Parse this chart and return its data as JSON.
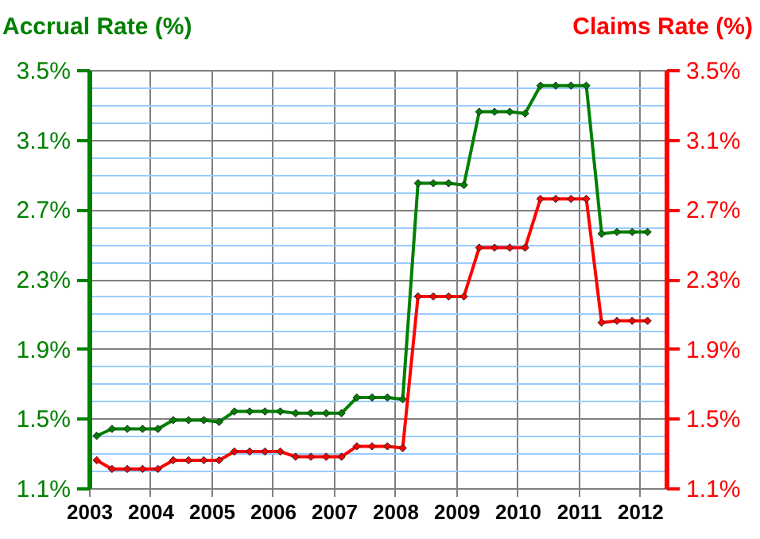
{
  "chart_data": {
    "type": "line",
    "ylabel": "Accrual Rate (%)",
    "y2label": "Claims Rate (%)",
    "x": [
      2003.125,
      2003.375,
      2003.625,
      2003.875,
      2004.125,
      2004.375,
      2004.625,
      2004.875,
      2005.125,
      2005.375,
      2005.625,
      2005.875,
      2006.125,
      2006.375,
      2006.625,
      2006.875,
      2007.125,
      2007.375,
      2007.625,
      2007.875,
      2008.125,
      2008.375,
      2008.625,
      2008.875,
      2009.125,
      2009.375,
      2009.625,
      2009.875,
      2010.125,
      2010.375,
      2010.625,
      2010.875,
      2011.125,
      2011.375,
      2011.625,
      2011.875,
      2012.125
    ],
    "series": [
      {
        "color": "#008000",
        "values": [
          1.4,
          1.44,
          1.44,
          1.44,
          1.44,
          1.49,
          1.49,
          1.49,
          1.48,
          1.54,
          1.54,
          1.54,
          1.54,
          1.53,
          1.53,
          1.53,
          1.53,
          1.62,
          1.62,
          1.62,
          1.61,
          2.85,
          2.85,
          2.85,
          2.84,
          3.26,
          3.26,
          3.26,
          3.25,
          3.41,
          3.41,
          3.41,
          3.41,
          2.56,
          2.57,
          2.57,
          2.57
        ]
      },
      {
        "color": "#ff0000",
        "axis": "y2",
        "values": [
          1.26,
          1.21,
          1.21,
          1.21,
          1.21,
          1.26,
          1.26,
          1.26,
          1.26,
          1.31,
          1.31,
          1.31,
          1.31,
          1.28,
          1.28,
          1.28,
          1.28,
          1.34,
          1.34,
          1.34,
          1.33,
          2.2,
          2.2,
          2.2,
          2.2,
          2.48,
          2.48,
          2.48,
          2.48,
          2.76,
          2.76,
          2.76,
          2.76,
          2.05,
          2.06,
          2.06,
          2.06
        ]
      }
    ],
    "xlim": [
      2003,
      2012.43
    ],
    "xticks": [
      2003,
      2004,
      2005,
      2006,
      2007,
      2008,
      2009,
      2010,
      2011,
      2012
    ],
    "ylim": [
      1.1,
      3.5
    ],
    "yticks": [
      {
        "value": 1.1,
        "label": "1.1%"
      },
      {
        "value": 1.2,
        "label": null
      },
      {
        "value": 1.3,
        "label": null
      },
      {
        "value": 1.4,
        "label": null
      },
      {
        "value": 1.5,
        "label": "1.5%"
      },
      {
        "value": 1.6,
        "label": null
      },
      {
        "value": 1.7,
        "label": null
      },
      {
        "value": 1.8,
        "label": null
      },
      {
        "value": 1.9,
        "label": "1.9%"
      },
      {
        "value": 2.0,
        "label": null
      },
      {
        "value": 2.1,
        "label": null
      },
      {
        "value": 2.2,
        "label": null
      },
      {
        "value": 2.3,
        "label": "2.3%"
      },
      {
        "value": 2.4,
        "label": null
      },
      {
        "value": 2.5,
        "label": null
      },
      {
        "value": 2.6,
        "label": null
      },
      {
        "value": 2.7,
        "label": "2.7%"
      },
      {
        "value": 2.8,
        "label": null
      },
      {
        "value": 2.9,
        "label": null
      },
      {
        "value": 3.0,
        "label": null
      },
      {
        "value": 3.1,
        "label": "3.1%"
      },
      {
        "value": 3.2,
        "label": null
      },
      {
        "value": 3.3,
        "label": null
      },
      {
        "value": 3.4,
        "label": null
      },
      {
        "value": 3.5,
        "label": "3.5%"
      }
    ],
    "y2lim": [
      1.1,
      3.5
    ],
    "y2ticks": [
      {
        "value": 1.1,
        "label": "1.1%"
      },
      {
        "value": 1.5,
        "label": "1.5%"
      },
      {
        "value": 1.9,
        "label": "1.9%"
      },
      {
        "value": 2.3,
        "label": "2.3%"
      },
      {
        "value": 2.7,
        "label": "2.7%"
      },
      {
        "value": 3.1,
        "label": "3.1%"
      },
      {
        "value": 3.5,
        "label": "3.5%"
      }
    ],
    "grid": true,
    "marker": "diamond",
    "line_style": "solid"
  }
}
